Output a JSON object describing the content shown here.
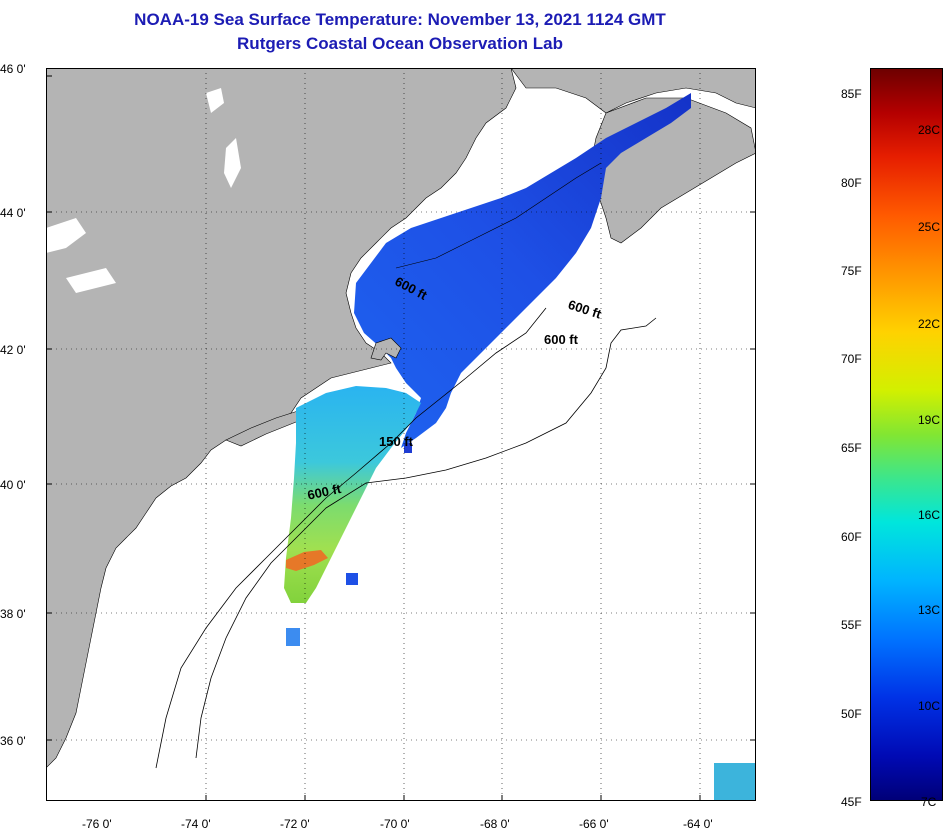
{
  "title": {
    "line1": "NOAA-19 Sea Surface Temperature:  November 13, 2021 1124 GMT",
    "line2": "Rutgers Coastal Ocean Observation Lab"
  },
  "map": {
    "lat_labels": [
      "46 0'",
      "44 0'",
      "42 0'",
      "40 0'",
      "38 0'",
      "36 0'"
    ],
    "lon_labels": [
      "-76 0'",
      "-74 0'",
      "-72 0'",
      "-70 0'",
      "-68 0'",
      "-66 0'",
      "-64 0'"
    ],
    "contour_labels": [
      "600 ft",
      "600 ft",
      "600 ft",
      "150 ft",
      "600 ft"
    ],
    "colors": {
      "land": "#b4b4b4",
      "ocean": "#ffffff",
      "grid": "#000000"
    }
  },
  "colorbar": {
    "fahrenheit": [
      "85F",
      "80F",
      "75F",
      "70F",
      "65F",
      "60F",
      "55F",
      "50F",
      "45F"
    ],
    "celsius": [
      "28C",
      "25C",
      "22C",
      "19C",
      "16C",
      "13C",
      "10C",
      "7C"
    ]
  }
}
